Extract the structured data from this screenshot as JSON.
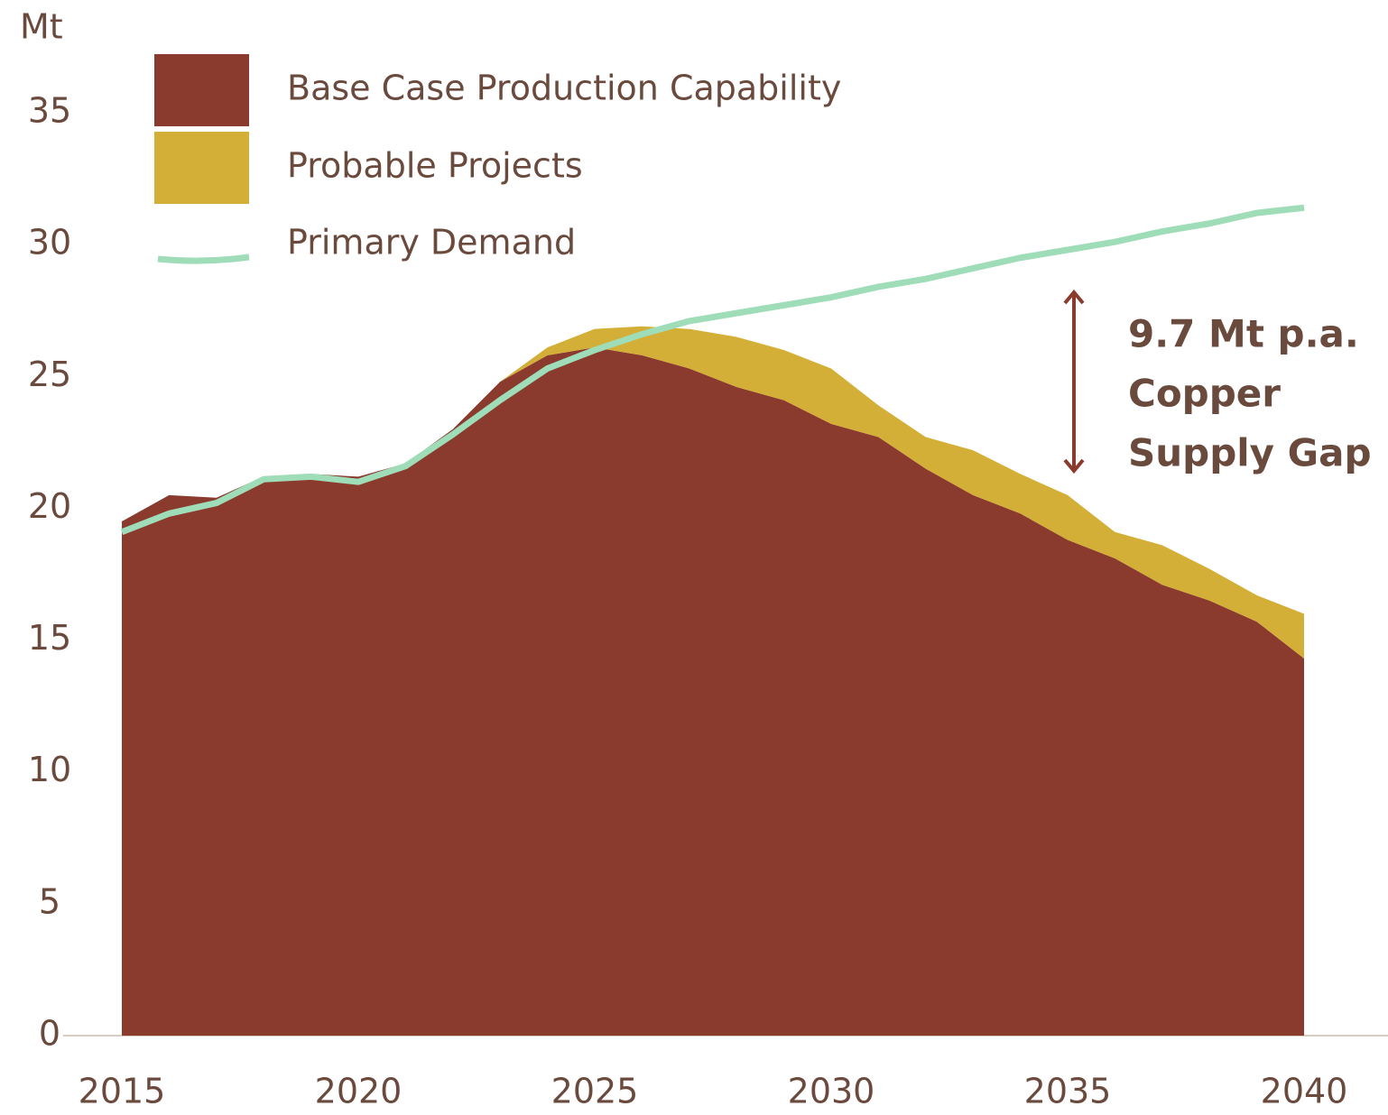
{
  "chart_data": {
    "type": "area",
    "y_label": "Mt",
    "x": [
      2015,
      2016,
      2017,
      2018,
      2019,
      2020,
      2021,
      2022,
      2023,
      2024,
      2025,
      2026,
      2027,
      2028,
      2029,
      2030,
      2031,
      2032,
      2033,
      2034,
      2035,
      2036,
      2037,
      2038,
      2039,
      2040
    ],
    "series": [
      {
        "name": "Base Case Production Capability",
        "color": "#8b3a2e",
        "values": [
          19.5,
          20.5,
          20.4,
          21.2,
          21.3,
          21.2,
          21.7,
          23.0,
          24.8,
          25.8,
          26.1,
          25.8,
          25.3,
          24.6,
          24.1,
          23.2,
          22.7,
          21.5,
          20.5,
          19.8,
          18.8,
          18.1,
          17.1,
          16.5,
          15.7,
          14.3
        ]
      },
      {
        "name": "Probable Projects",
        "color": "#d4af37",
        "values": [
          0,
          0,
          0,
          0,
          0,
          0,
          0,
          0,
          0,
          0.3,
          0.7,
          1.1,
          1.5,
          1.9,
          1.9,
          2.1,
          1.2,
          1.2,
          1.7,
          1.5,
          1.7,
          1.0,
          1.5,
          1.2,
          1.0,
          1.7
        ]
      },
      {
        "name": "Primary Demand",
        "color": "#9fdcb8",
        "type": "line",
        "values": [
          19.1,
          19.8,
          20.2,
          21.1,
          21.2,
          21.0,
          21.6,
          22.8,
          24.1,
          25.3,
          26.0,
          26.6,
          27.1,
          27.4,
          27.7,
          28.0,
          28.4,
          28.7,
          29.1,
          29.5,
          29.8,
          30.1,
          30.5,
          30.8,
          31.2,
          31.4
        ]
      }
    ],
    "xlim": [
      2015,
      2040
    ],
    "xticks": [
      2015,
      2020,
      2025,
      2030,
      2035,
      2040
    ],
    "ylim": [
      0,
      35
    ],
    "yticks": [
      0,
      5,
      10,
      15,
      20,
      25,
      30,
      35
    ],
    "grid": false,
    "annotation": [
      "9.7 Mt p.a.",
      "Copper",
      "Supply Gap"
    ]
  }
}
